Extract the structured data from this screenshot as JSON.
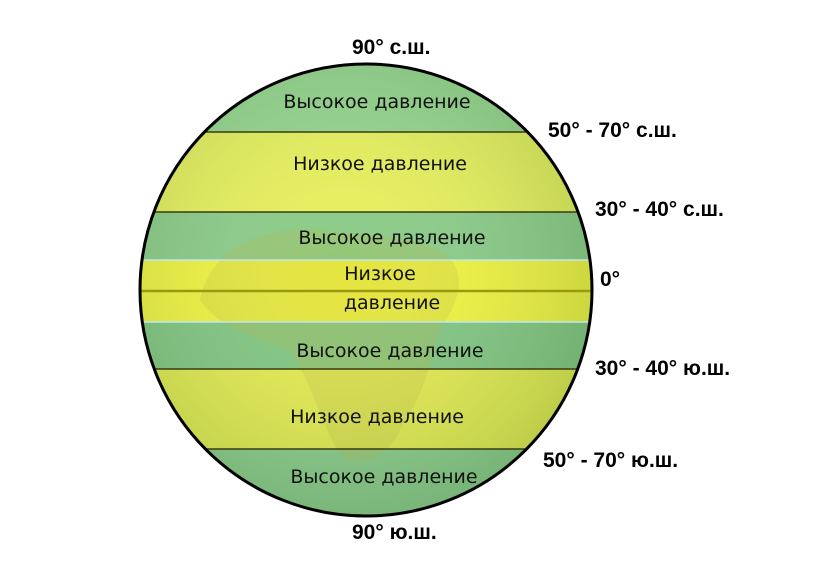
{
  "latitudes": {
    "north_pole": "90° с.ш.",
    "north_50_70": "50° - 70° с.ш.",
    "north_30_40": "30° - 40° с.ш.",
    "equator": "0°",
    "south_30_40": "30° - 40° ю.ш.",
    "south_50_70": "50° - 70° ю.ш.",
    "south_pole": "90° ю.ш."
  },
  "bands": [
    {
      "label": "Высокое давление",
      "type": "high"
    },
    {
      "label": "Низкое давление",
      "type": "low"
    },
    {
      "label": "Высокое давление",
      "type": "high"
    },
    {
      "label_line1": "Низкое",
      "label_line2": "давление",
      "type": "low"
    },
    {
      "label": "Высокое давление",
      "type": "high"
    },
    {
      "label": "Низкое давление",
      "type": "low"
    },
    {
      "label": "Высокое давление",
      "type": "high"
    }
  ],
  "colors": {
    "high": "#8ccf8c",
    "low": "#ecf250",
    "outline": "#000000"
  }
}
